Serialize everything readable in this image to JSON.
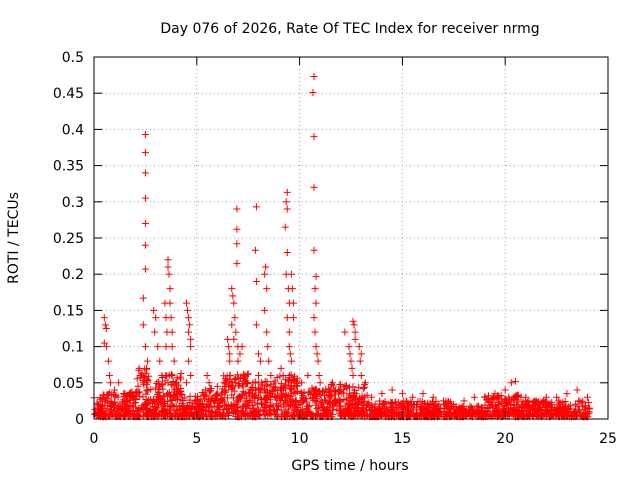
{
  "chart_data": {
    "type": "scatter",
    "title": "Day 076 of 2026, Rate Of TEC Index for receiver nrmg",
    "xlabel": "GPS time / hours",
    "ylabel": "ROTI / TECUs",
    "xlim": [
      0,
      25
    ],
    "ylim": [
      0,
      0.5
    ],
    "x_ticks": [
      0,
      5,
      10,
      15,
      20,
      25
    ],
    "x_tick_labels": [
      "0",
      "5",
      "10",
      "15",
      "20",
      "25"
    ],
    "y_ticks": [
      0,
      0.05,
      0.1,
      0.15,
      0.2,
      0.25,
      0.3,
      0.35,
      0.4,
      0.45,
      0.5
    ],
    "y_tick_labels": [
      "0",
      "0.05",
      "0.1",
      "0.15",
      "0.2",
      "0.25",
      "0.3",
      "0.35",
      "0.4",
      "0.45",
      "0.5"
    ],
    "grid": true,
    "marker": "+",
    "color": "#ff0000",
    "series": [
      {
        "name": "ROTI",
        "points": [
          [
            0.5,
            0.14
          ],
          [
            0.55,
            0.13
          ],
          [
            0.6,
            0.125
          ],
          [
            0.5,
            0.105
          ],
          [
            0.6,
            0.1
          ],
          [
            0.7,
            0.08
          ],
          [
            0.75,
            0.06
          ],
          [
            0.8,
            0.05
          ],
          [
            1.0,
            0.04
          ],
          [
            1.2,
            0.05
          ],
          [
            1.5,
            0.035
          ],
          [
            1.8,
            0.03
          ],
          [
            2.2,
            0.07
          ],
          [
            2.3,
            0.06
          ],
          [
            2.4,
            0.05
          ],
          [
            2.5,
            0.393
          ],
          [
            2.5,
            0.368
          ],
          [
            2.5,
            0.34
          ],
          [
            2.5,
            0.305
          ],
          [
            2.5,
            0.27
          ],
          [
            2.5,
            0.24
          ],
          [
            2.5,
            0.207
          ],
          [
            2.4,
            0.167
          ],
          [
            2.4,
            0.13
          ],
          [
            2.5,
            0.1
          ],
          [
            2.6,
            0.08
          ],
          [
            2.9,
            0.15
          ],
          [
            3.0,
            0.14
          ],
          [
            2.95,
            0.12
          ],
          [
            3.1,
            0.1
          ],
          [
            3.2,
            0.08
          ],
          [
            3.3,
            0.06
          ],
          [
            3.45,
            0.16
          ],
          [
            3.5,
            0.14
          ],
          [
            3.55,
            0.12
          ],
          [
            3.5,
            0.1
          ],
          [
            3.6,
            0.22
          ],
          [
            3.6,
            0.21
          ],
          [
            3.65,
            0.2
          ],
          [
            3.7,
            0.18
          ],
          [
            3.7,
            0.16
          ],
          [
            3.75,
            0.14
          ],
          [
            3.8,
            0.12
          ],
          [
            3.8,
            0.1
          ],
          [
            3.9,
            0.08
          ],
          [
            3.8,
            0.06
          ],
          [
            3.6,
            0.05
          ],
          [
            4.0,
            0.05
          ],
          [
            4.5,
            0.16
          ],
          [
            4.55,
            0.15
          ],
          [
            4.6,
            0.14
          ],
          [
            4.65,
            0.13
          ],
          [
            4.6,
            0.12
          ],
          [
            4.7,
            0.11
          ],
          [
            4.7,
            0.1
          ],
          [
            4.6,
            0.08
          ],
          [
            4.7,
            0.06
          ],
          [
            4.5,
            0.05
          ],
          [
            5.5,
            0.06
          ],
          [
            5.6,
            0.05
          ],
          [
            6.0,
            0.045
          ],
          [
            6.5,
            0.11
          ],
          [
            6.55,
            0.1
          ],
          [
            6.6,
            0.09
          ],
          [
            6.6,
            0.08
          ],
          [
            6.7,
            0.18
          ],
          [
            6.75,
            0.17
          ],
          [
            6.8,
            0.16
          ],
          [
            6.85,
            0.14
          ],
          [
            6.7,
            0.13
          ],
          [
            6.9,
            0.12
          ],
          [
            6.8,
            0.11
          ],
          [
            6.6,
            0.06
          ],
          [
            6.7,
            0.05
          ],
          [
            6.95,
            0.29
          ],
          [
            6.95,
            0.262
          ],
          [
            6.95,
            0.242
          ],
          [
            6.95,
            0.215
          ],
          [
            7.0,
            0.1
          ],
          [
            7.1,
            0.09
          ],
          [
            7.2,
            0.1
          ],
          [
            7.0,
            0.08
          ],
          [
            7.3,
            0.06
          ],
          [
            7.4,
            0.05
          ],
          [
            7.9,
            0.293
          ],
          [
            7.85,
            0.233
          ],
          [
            7.9,
            0.19
          ],
          [
            7.9,
            0.13
          ],
          [
            8.0,
            0.09
          ],
          [
            8.1,
            0.08
          ],
          [
            8.0,
            0.06
          ],
          [
            8.3,
            0.2
          ],
          [
            8.35,
            0.21
          ],
          [
            8.4,
            0.18
          ],
          [
            8.3,
            0.15
          ],
          [
            8.4,
            0.12
          ],
          [
            8.45,
            0.1
          ],
          [
            8.5,
            0.08
          ],
          [
            8.6,
            0.06
          ],
          [
            9.1,
            0.07
          ],
          [
            9.2,
            0.06
          ],
          [
            9.4,
            0.313
          ],
          [
            9.35,
            0.3
          ],
          [
            9.4,
            0.29
          ],
          [
            9.3,
            0.265
          ],
          [
            9.4,
            0.23
          ],
          [
            9.35,
            0.2
          ],
          [
            9.45,
            0.18
          ],
          [
            9.5,
            0.16
          ],
          [
            9.4,
            0.14
          ],
          [
            9.5,
            0.12
          ],
          [
            9.5,
            0.1
          ],
          [
            9.55,
            0.09
          ],
          [
            9.6,
            0.08
          ],
          [
            9.5,
            0.06
          ],
          [
            9.6,
            0.05
          ],
          [
            9.6,
            0.2
          ],
          [
            9.65,
            0.18
          ],
          [
            9.7,
            0.16
          ],
          [
            9.7,
            0.14
          ],
          [
            10.1,
            0.05
          ],
          [
            10.4,
            0.06
          ],
          [
            10.7,
            0.473
          ],
          [
            10.65,
            0.451
          ],
          [
            10.7,
            0.39
          ],
          [
            10.7,
            0.32
          ],
          [
            10.7,
            0.233
          ],
          [
            10.8,
            0.197
          ],
          [
            10.75,
            0.18
          ],
          [
            10.8,
            0.16
          ],
          [
            10.7,
            0.14
          ],
          [
            10.75,
            0.12
          ],
          [
            10.8,
            0.1
          ],
          [
            10.85,
            0.09
          ],
          [
            10.9,
            0.08
          ],
          [
            10.95,
            0.06
          ],
          [
            11.0,
            0.05
          ],
          [
            11.6,
            0.05
          ],
          [
            12.0,
            0.04
          ],
          [
            12.2,
            0.12
          ],
          [
            12.4,
            0.1
          ],
          [
            12.45,
            0.09
          ],
          [
            12.5,
            0.08
          ],
          [
            12.6,
            0.135
          ],
          [
            12.65,
            0.13
          ],
          [
            12.7,
            0.12
          ],
          [
            12.7,
            0.11
          ],
          [
            12.55,
            0.07
          ],
          [
            12.6,
            0.06
          ],
          [
            12.9,
            0.1
          ],
          [
            13.0,
            0.09
          ],
          [
            12.95,
            0.08
          ],
          [
            13.0,
            0.06
          ],
          [
            13.2,
            0.05
          ],
          [
            13.5,
            0.03
          ],
          [
            14.0,
            0.035
          ],
          [
            14.5,
            0.04
          ],
          [
            15.0,
            0.035
          ],
          [
            15.5,
            0.03
          ],
          [
            16.0,
            0.035
          ],
          [
            16.5,
            0.03
          ],
          [
            17.0,
            0.025
          ],
          [
            17.5,
            0.02
          ],
          [
            18.0,
            0.025
          ],
          [
            18.5,
            0.03
          ],
          [
            19.0,
            0.03
          ],
          [
            19.5,
            0.035
          ],
          [
            20.0,
            0.04
          ],
          [
            20.3,
            0.05
          ],
          [
            20.5,
            0.052
          ],
          [
            21.0,
            0.03
          ],
          [
            21.5,
            0.025
          ],
          [
            22.0,
            0.03
          ],
          [
            22.5,
            0.03
          ],
          [
            23.0,
            0.035
          ],
          [
            23.5,
            0.04
          ],
          [
            24.0,
            0.03
          ]
        ],
        "density_bands": [
          {
            "x_start": 0.0,
            "x_end": 0.45,
            "y_low": 0.0,
            "y_high": 0.03
          },
          {
            "x_start": 0.45,
            "x_end": 2.1,
            "y_low": 0.0,
            "y_high": 0.035
          },
          {
            "x_start": 2.1,
            "x_end": 2.7,
            "y_low": 0.0,
            "y_high": 0.07
          },
          {
            "x_start": 2.7,
            "x_end": 3.3,
            "y_low": 0.0,
            "y_high": 0.05
          },
          {
            "x_start": 3.3,
            "x_end": 4.3,
            "y_low": 0.0,
            "y_high": 0.06
          },
          {
            "x_start": 4.3,
            "x_end": 5.2,
            "y_low": 0.0,
            "y_high": 0.03
          },
          {
            "x_start": 5.2,
            "x_end": 6.3,
            "y_low": 0.0,
            "y_high": 0.04
          },
          {
            "x_start": 6.3,
            "x_end": 7.5,
            "y_low": 0.0,
            "y_high": 0.06
          },
          {
            "x_start": 7.5,
            "x_end": 8.8,
            "y_low": 0.0,
            "y_high": 0.05
          },
          {
            "x_start": 8.8,
            "x_end": 9.9,
            "y_low": 0.0,
            "y_high": 0.06
          },
          {
            "x_start": 9.9,
            "x_end": 11.4,
            "y_low": 0.0,
            "y_high": 0.04
          },
          {
            "x_start": 11.4,
            "x_end": 13.3,
            "y_low": 0.0,
            "y_high": 0.045
          },
          {
            "x_start": 13.3,
            "x_end": 17.5,
            "y_low": 0.0,
            "y_high": 0.022
          },
          {
            "x_start": 17.5,
            "x_end": 19.0,
            "y_low": 0.0,
            "y_high": 0.015
          },
          {
            "x_start": 19.0,
            "x_end": 20.8,
            "y_low": 0.0,
            "y_high": 0.03
          },
          {
            "x_start": 20.8,
            "x_end": 24.1,
            "y_low": 0.0,
            "y_high": 0.022
          }
        ]
      }
    ]
  }
}
